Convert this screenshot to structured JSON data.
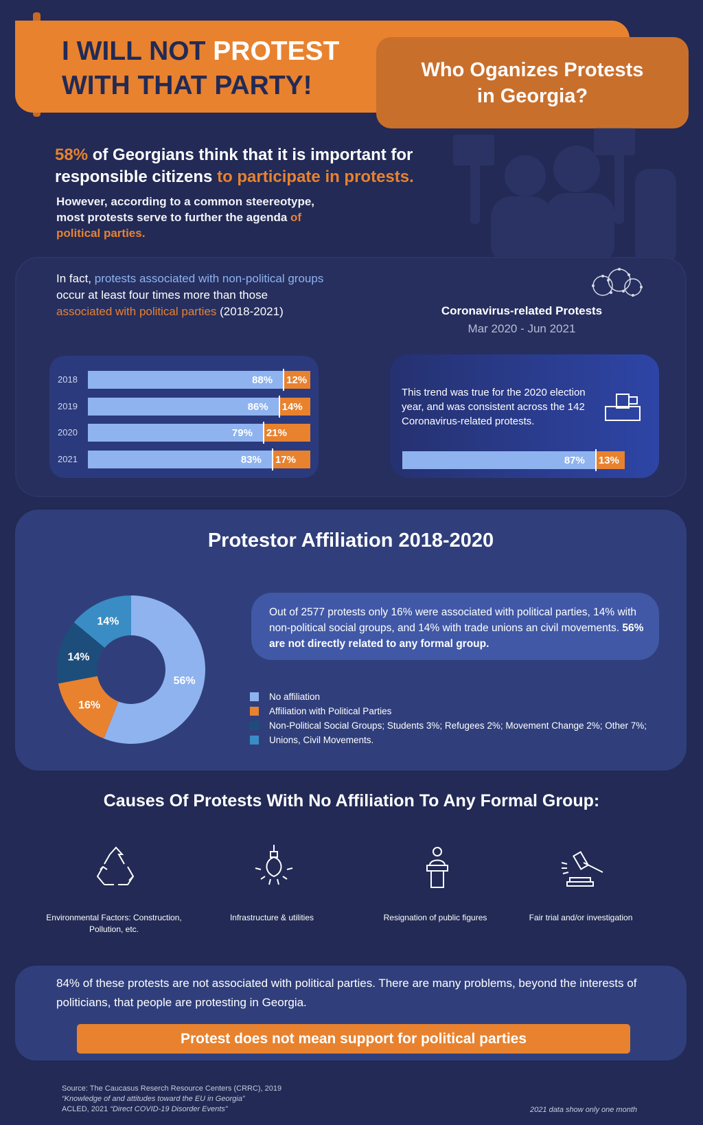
{
  "header": {
    "title_line1_a": "I WILL NOT ",
    "title_line1_b": "PROTEST",
    "title_line2": "WITH THAT PARTY!",
    "subtitle": "Who Oganizes Protests in Georgia?"
  },
  "intro": {
    "stat_pct": "58%",
    "stat_a": " of Georgians think that it is important for responsible citizens ",
    "stat_b": "to participate in protests.",
    "sub_a": "However, according to a common steereotype, most protests serve to further the agenda ",
    "sub_b": "of political parties."
  },
  "section1": {
    "text_a": "In fact, ",
    "text_b": "protests associated with non-political groups",
    "text_c": " occur at least four times more than those ",
    "text_d": "associated with political parties",
    "text_e": " (2018-2021)"
  },
  "corona": {
    "title": "Coronavirus-related Protests",
    "range": "Mar 2020 - Jun 2021",
    "text": "This trend was true for the 2020 election year, and was consistent across the 142 Coronavirus-related protests."
  },
  "section2": {
    "title": "Protestor Affiliation 2018-2020",
    "info_a": "Out of 2577 protests only 16% were associated with political parties, 14% with non-political social groups, and 14% with trade unions an civil movements. ",
    "info_b": "56% are not directly related to any formal group."
  },
  "causes": {
    "title": "Causes Of Protests With No Affiliation To Any Formal Group:",
    "items": [
      {
        "label": "Environmental Factors: Construction, Pollution, etc.",
        "icon": "recycle-icon"
      },
      {
        "label": "Infrastructure & utilities",
        "icon": "lightbulb-icon"
      },
      {
        "label": "Resignation of public figures",
        "icon": "podium-speaker-icon"
      },
      {
        "label": "Fair trial and/or investigation",
        "icon": "gavel-icon"
      }
    ]
  },
  "conclusion": {
    "text": "84% of these protests are not associated with political parties. There are many problems, beyond the interests of politicians, that people are protesting in Georgia.",
    "cta": "Protest does not mean support for political parties"
  },
  "footer": {
    "source1": "Source: The Caucasus Reserch Resource Centers (CRRC), 2019",
    "source2": "“Knowledge of and attitudes toward the EU in Georgia”",
    "source3a": "ACLED, 2021 ",
    "source3b": "“Direct COVID-19 Disorder Events”",
    "note": "2021 data show only one month"
  },
  "colors": {
    "background": "#222a55",
    "orange": "#e8822f",
    "light_blue": "#8fb3ef",
    "dark_blue": "#1d4d7a",
    "mid_blue": "#3a8cc4"
  },
  "chart_data": [
    {
      "type": "bar",
      "orientation": "horizontal-stacked-100",
      "categories": [
        "2018",
        "2019",
        "2020",
        "2021"
      ],
      "series": [
        {
          "name": "non-political groups",
          "values": [
            88,
            86,
            79,
            83
          ],
          "labels": [
            "88%",
            "86%",
            "79%",
            "83%"
          ],
          "color": "#8fb3ef"
        },
        {
          "name": "political parties",
          "values": [
            12,
            14,
            21,
            17
          ],
          "labels": [
            "12%",
            "14%",
            "21%",
            "17%"
          ],
          "color": "#e8822f"
        }
      ]
    },
    {
      "type": "bar",
      "orientation": "horizontal-stacked-100",
      "title": "Coronavirus-related Protests",
      "categories": [
        "Mar 2020 - Jun 2021"
      ],
      "series": [
        {
          "values": [
            87
          ],
          "labels": [
            "87%"
          ],
          "color": "#8fb3ef"
        },
        {
          "values": [
            13
          ],
          "labels": [
            "13%"
          ],
          "color": "#e8822f"
        }
      ]
    },
    {
      "type": "pie",
      "subtype": "donut",
      "title": "Protestor Affiliation 2018-2020",
      "slices": [
        {
          "name": "No affiliation",
          "value": 56,
          "label": "56%",
          "color": "#8fb3ef"
        },
        {
          "name": "Affiliation with Political Parties",
          "value": 16,
          "label": "16%",
          "color": "#e8822f"
        },
        {
          "name": "Non-Political Social Groups; Students 3%; Refugees 2%; Movement Change 2%; Other 7%;",
          "value": 14,
          "label": "14%",
          "color": "#1d4d7a"
        },
        {
          "name": "Unions, Civil Movements.",
          "value": 14,
          "label": "14%",
          "color": "#3a8cc4"
        }
      ],
      "legend": "right"
    }
  ]
}
